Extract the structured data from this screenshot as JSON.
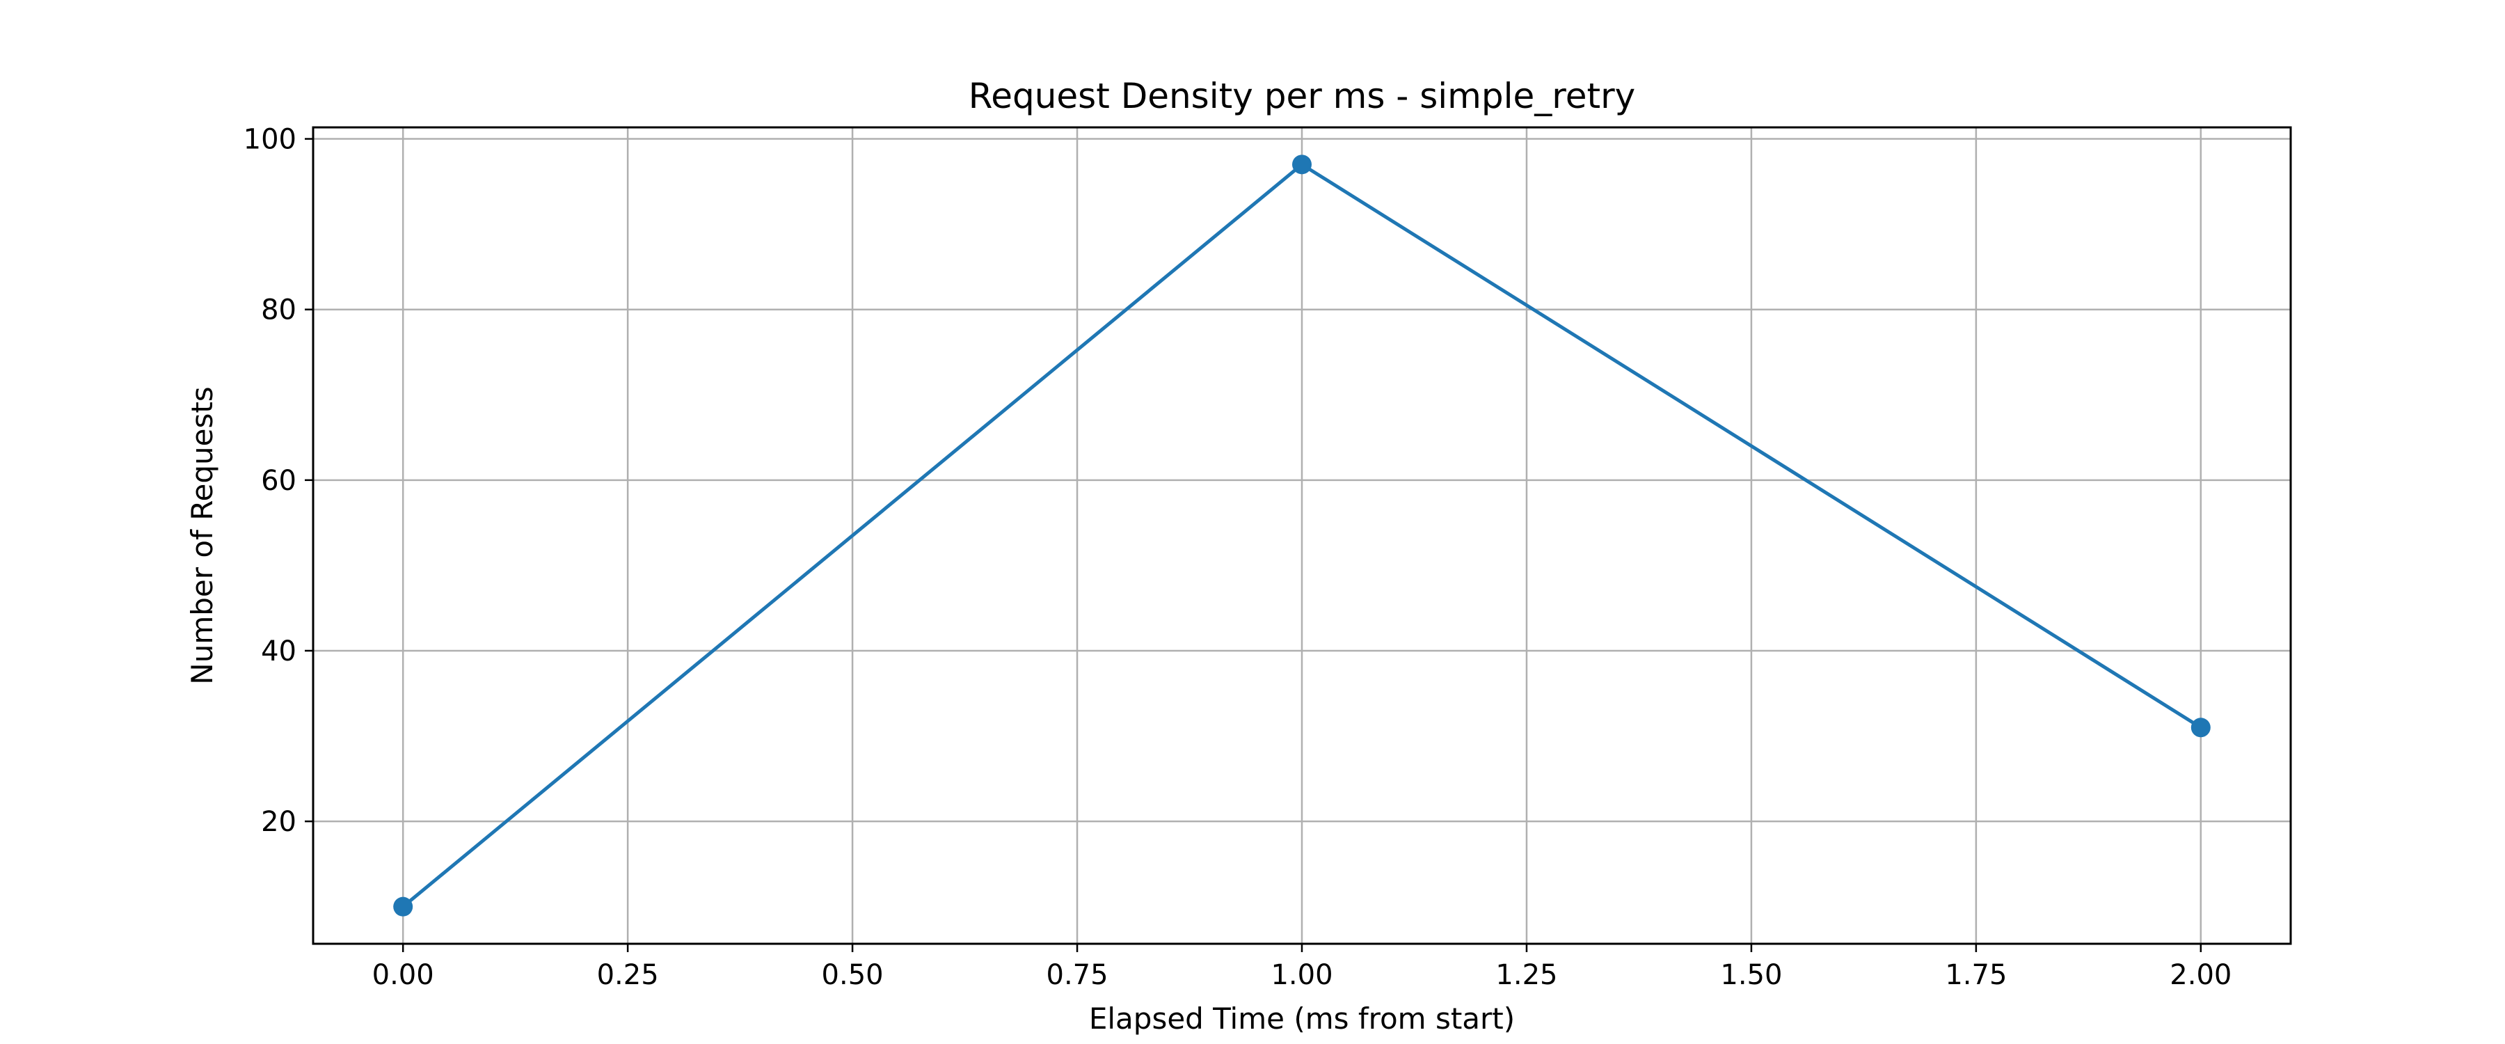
{
  "chart_data": {
    "type": "line",
    "title": "Request Density per ms - simple_retry",
    "xlabel": "Elapsed Time (ms from start)",
    "ylabel": "Number of Requests",
    "xlim": [
      -0.1,
      2.1
    ],
    "ylim": [
      5.65,
      101.35
    ],
    "xticks": [
      0,
      0.25,
      0.5,
      0.75,
      1,
      1.25,
      1.5,
      1.75,
      2
    ],
    "xtick_labels": [
      "0.00",
      "0.25",
      "0.50",
      "0.75",
      "1.00",
      "1.25",
      "1.50",
      "1.75",
      "2.00"
    ],
    "yticks": [
      20,
      40,
      60,
      80,
      100
    ],
    "ytick_labels": [
      "20",
      "40",
      "60",
      "80",
      "100"
    ],
    "grid": true,
    "legend": "none",
    "series": [
      {
        "x": [
          0,
          1,
          2
        ],
        "y": [
          10,
          97,
          31
        ],
        "color": "#1f77b4",
        "marker": "circle"
      }
    ]
  }
}
